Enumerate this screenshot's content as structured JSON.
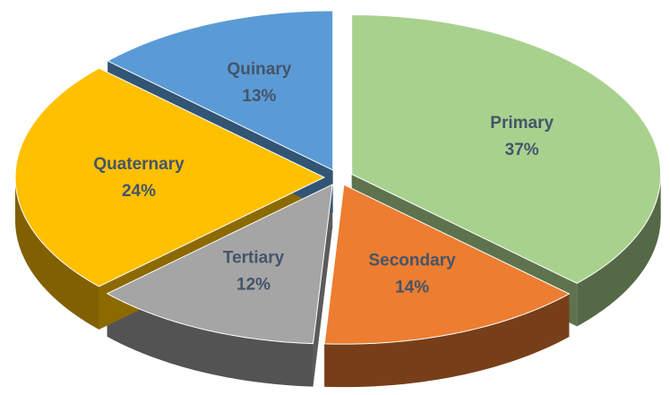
{
  "chart_data": {
    "type": "pie",
    "categories": [
      "Primary",
      "Secondary",
      "Tertiary",
      "Quaternary",
      "Quinary"
    ],
    "values": [
      37,
      14,
      12,
      24,
      13
    ],
    "value_labels": [
      "37%",
      "14%",
      "12%",
      "24%",
      "13%"
    ],
    "colors": [
      "#a9d18e",
      "#ed7d31",
      "#a5a5a5",
      "#ffc000",
      "#5b9bd5"
    ]
  }
}
